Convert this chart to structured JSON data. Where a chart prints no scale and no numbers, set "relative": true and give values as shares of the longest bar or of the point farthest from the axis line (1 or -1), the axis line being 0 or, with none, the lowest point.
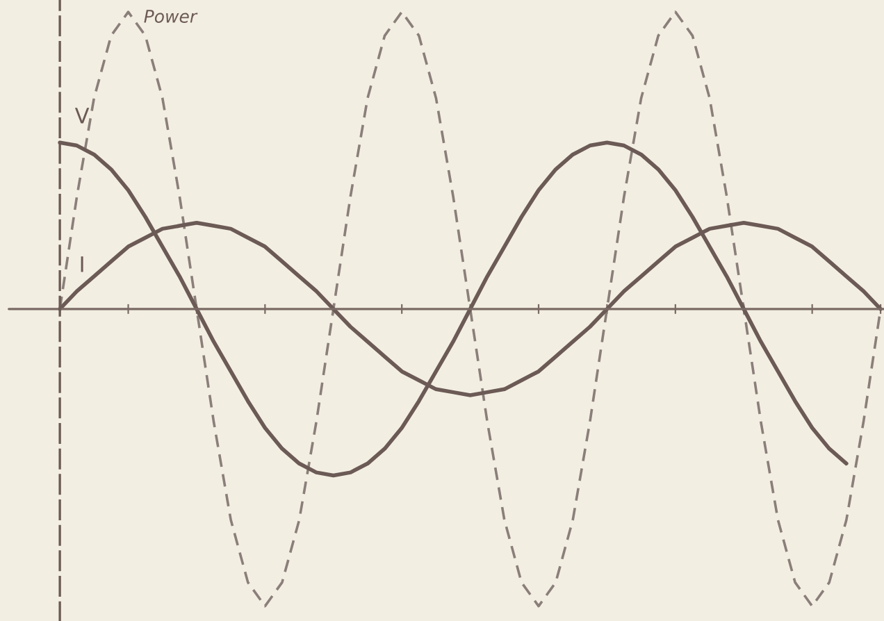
{
  "chart_data": {
    "type": "line",
    "relative": true,
    "categories": [
      null,
      null,
      null,
      null,
      null,
      null,
      null,
      null,
      null,
      null,
      null,
      null,
      null,
      null,
      null,
      null,
      null,
      null,
      null,
      null,
      null,
      null,
      null,
      null,
      null,
      null,
      null,
      null,
      null,
      null,
      null,
      null,
      null,
      null,
      null,
      null,
      null,
      null,
      null,
      null,
      null,
      null,
      null,
      null,
      null,
      null,
      null,
      null,
      null
    ],
    "series": [
      {
        "name": "Power",
        "color": "#8a7f7a",
        "line_style": "dashed",
        "values": [
          0,
          0.38,
          0.71,
          0.92,
          1,
          0.92,
          0.71,
          0.38,
          0,
          -0.38,
          -0.71,
          -0.92,
          -1,
          -0.92,
          -0.71,
          -0.38,
          0,
          0.38,
          0.71,
          0.92,
          1,
          0.92,
          0.71,
          0.38,
          0,
          -0.38,
          -0.71,
          -0.92,
          -1,
          -0.92,
          -0.71,
          -0.38,
          0,
          0.38,
          0.71,
          0.92,
          1,
          0.92,
          0.71,
          0.38,
          0,
          -0.38,
          -0.71,
          -0.92,
          -1,
          -0.92,
          -0.71,
          -0.38,
          0
        ]
      },
      {
        "name": "V",
        "color": "#6b5a55",
        "line_style": "solid",
        "values": [
          0.56,
          0.55,
          0.52,
          0.47,
          0.4,
          0.31,
          0.21,
          0.11,
          0,
          -0.11,
          -0.21,
          -0.31,
          -0.4,
          -0.47,
          -0.52,
          -0.55,
          -0.56,
          -0.55,
          -0.52,
          -0.47,
          -0.4,
          -0.31,
          -0.21,
          -0.11,
          0,
          0.11,
          0.21,
          0.31,
          0.4,
          0.47,
          0.52,
          0.55,
          0.56,
          0.55,
          0.52,
          0.47,
          0.4,
          0.31,
          0.21,
          0.11,
          0,
          -0.11,
          -0.21,
          -0.31,
          -0.4,
          -0.47,
          -0.52,
          null,
          null
        ]
      },
      {
        "name": "I",
        "color": "#6b5a55",
        "line_style": "solid",
        "values": [
          0,
          0.06,
          0.11,
          0.16,
          0.21,
          0.24,
          0.27,
          0.28,
          0.29,
          0.28,
          0.27,
          0.24,
          0.21,
          0.16,
          0.11,
          0.06,
          0,
          -0.06,
          -0.11,
          -0.16,
          -0.21,
          -0.24,
          -0.27,
          -0.28,
          -0.29,
          -0.28,
          -0.27,
          -0.24,
          -0.21,
          -0.16,
          -0.11,
          -0.06,
          0,
          0.06,
          0.11,
          0.16,
          0.21,
          0.24,
          0.27,
          0.28,
          0.29,
          0.28,
          0.27,
          0.24,
          0.21,
          0.16,
          0.11,
          0.06,
          0
        ]
      }
    ]
  }
}
